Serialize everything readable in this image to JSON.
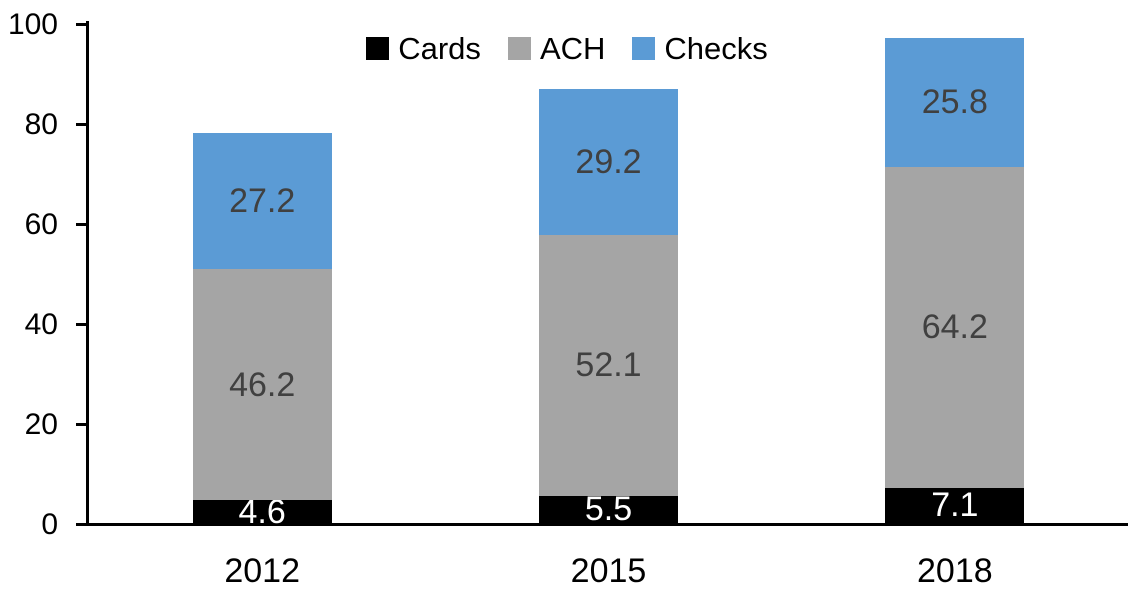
{
  "chart_data": {
    "type": "bar",
    "stacked": true,
    "title": "",
    "categories": [
      "2012",
      "2015",
      "2018"
    ],
    "series": [
      {
        "name": "Cards",
        "color": "#000000",
        "label_color": "#ffffff",
        "values": [
          4.6,
          5.5,
          7.1
        ]
      },
      {
        "name": "ACH",
        "color": "#a5a5a5",
        "label_color": "#404040",
        "values": [
          46.2,
          52.1,
          64.2
        ]
      },
      {
        "name": "Checks",
        "color": "#5b9bd5",
        "label_color": "#404040",
        "values": [
          27.2,
          29.2,
          25.8
        ]
      }
    ],
    "ylim": [
      0,
      100
    ],
    "yticks": [
      0,
      20,
      40,
      60,
      80,
      100
    ],
    "xlabel": "",
    "ylabel": "",
    "grid": false,
    "data_labels": true,
    "legend_position": "top-center",
    "axis_color": "#000000"
  }
}
